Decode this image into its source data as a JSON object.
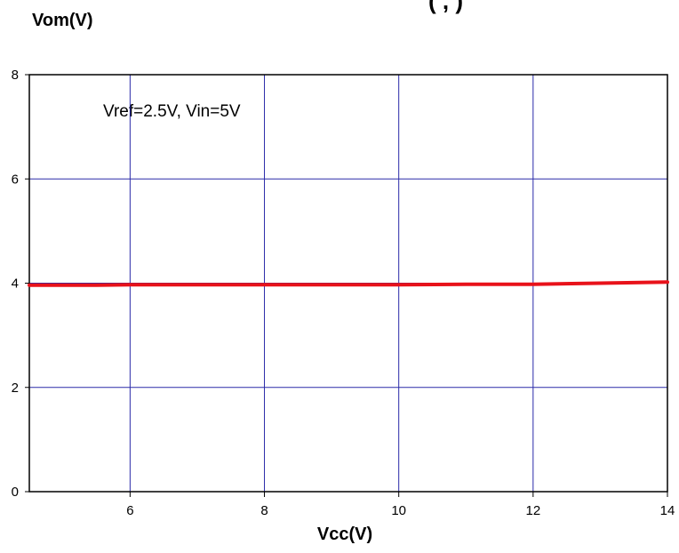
{
  "title_fragment": "(      ,  )",
  "chart_data": {
    "type": "line",
    "xlabel": "Vcc(V)",
    "ylabel": "Vom(V)",
    "xlim": [
      4.5,
      14
    ],
    "ylim": [
      0,
      8
    ],
    "xticks": [
      6,
      8,
      10,
      12,
      14
    ],
    "yticks": [
      0,
      2,
      4,
      6,
      8
    ],
    "grid": true,
    "annotation": "Vref=2.5V, Vin=5V",
    "series": [
      {
        "x": [
          4.5,
          5,
          5.5,
          6,
          7,
          8,
          9,
          10,
          11,
          12,
          13,
          14
        ],
        "y": [
          3.96,
          3.96,
          3.96,
          3.97,
          3.97,
          3.97,
          3.97,
          3.97,
          3.98,
          3.98,
          4.0,
          4.02
        ],
        "color": "#e8121a"
      }
    ]
  },
  "colors": {
    "grid": "#2a2aa8",
    "axis": "#000000",
    "line": "#e8121a"
  }
}
